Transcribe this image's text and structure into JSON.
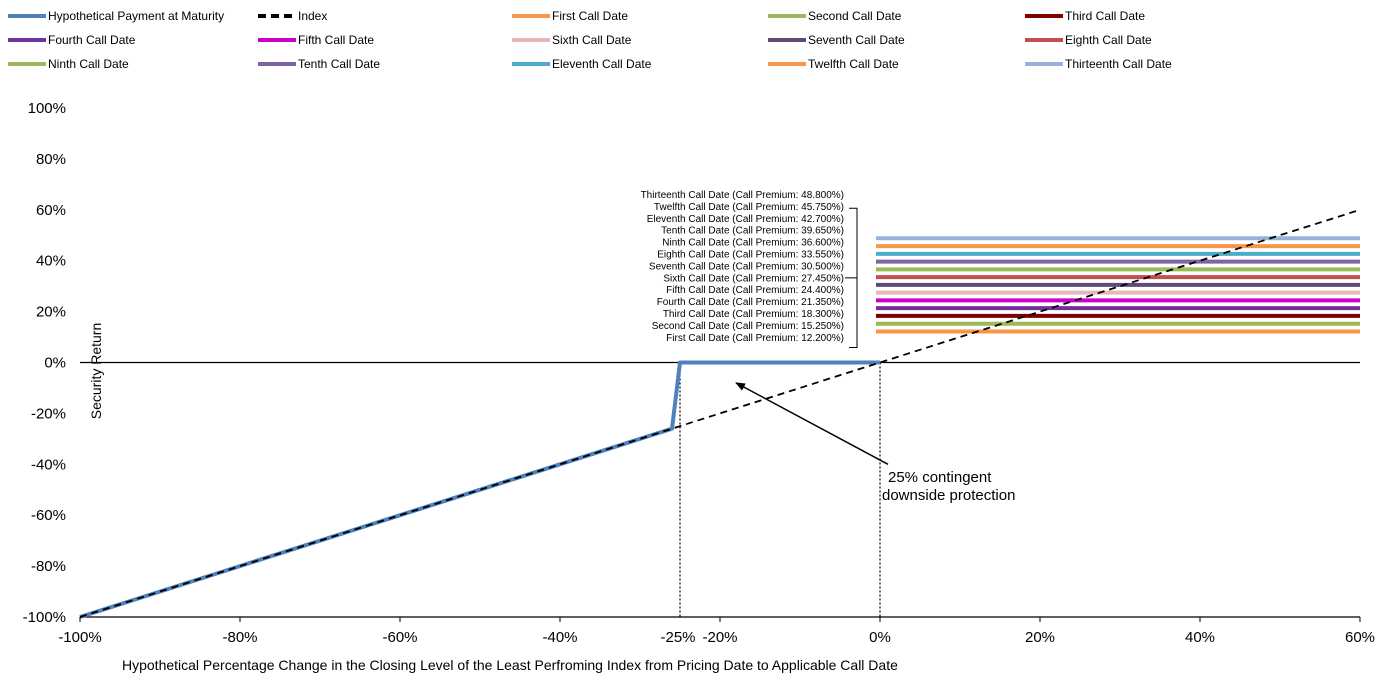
{
  "chart_data": {
    "type": "line",
    "title": "",
    "xlabel": "Hypothetical Percentage Change in the Closing Level of the Least Perfroming Index from Pricing Date to Applicable Call Date",
    "ylabel": "Security Return",
    "xlim": [
      -100,
      60
    ],
    "ylim": [
      -100,
      100
    ],
    "x_ticks": [
      -100,
      -80,
      -60,
      -40,
      -20,
      0,
      20,
      40,
      60
    ],
    "x_tick_labels": [
      "-100%",
      "-80%",
      "-60%",
      "-40%",
      "-20%",
      "0%",
      "20%",
      "40%",
      "60%"
    ],
    "extra_x_tick": {
      "x": -25,
      "label": "-25%"
    },
    "y_ticks": [
      100,
      80,
      60,
      40,
      20,
      0,
      -20,
      -40,
      -60,
      -80,
      -100
    ],
    "y_tick_labels": [
      "100%",
      "80%",
      "60%",
      "40%",
      "20%",
      "0%",
      "-20%",
      "-40%",
      "-60%",
      "-80%",
      "-100%"
    ],
    "grid": false,
    "legend_placement": "top",
    "series": [
      {
        "name": "Hypothetical Payment at Maturity",
        "color": "#4f81bd",
        "style": "solid",
        "x": [
          -100,
          -26,
          -25,
          0
        ],
        "y": [
          -100,
          -26,
          0,
          0
        ]
      },
      {
        "name": "Index",
        "color": "#000000",
        "style": "dashed",
        "x": [
          -100,
          60
        ],
        "y": [
          -100,
          60
        ]
      }
    ],
    "call_dates": [
      {
        "name": "First Call Date",
        "premium": 12.2,
        "color": "#f79646",
        "label": "First Call Date (Call Premium: 12.200%)"
      },
      {
        "name": "Second Call Date",
        "premium": 15.25,
        "color": "#9bbb59",
        "label": "Second Call Date (Call Premium: 15.250%)"
      },
      {
        "name": "Third Call Date",
        "premium": 18.3,
        "color": "#7f0000",
        "label": "Third Call Date (Call Premium: 18.300%)"
      },
      {
        "name": "Fourth Call Date",
        "premium": 21.35,
        "color": "#7030a0",
        "label": "Fourth Call Date (Call Premium: 21.350%)"
      },
      {
        "name": "Fifth Call Date",
        "premium": 24.4,
        "color": "#cc00cc",
        "label": "Fifth Call Date (Call Premium: 24.400%)"
      },
      {
        "name": "Sixth Call Date",
        "premium": 27.45,
        "color": "#e6b9b8",
        "label": "Sixth Call Date (Call Premium: 27.450%)"
      },
      {
        "name": "Seventh Call Date",
        "premium": 30.5,
        "color": "#604a7b",
        "label": "Seventh Call Date (Call Premium: 30.500%)"
      },
      {
        "name": "Eighth Call Date",
        "premium": 33.55,
        "color": "#c0504d",
        "label": "Eighth Call Date (Call Premium: 33.550%)"
      },
      {
        "name": "Ninth Call Date",
        "premium": 36.6,
        "color": "#9bbb59",
        "label": "Ninth Call Date (Call Premium: 36.600%)"
      },
      {
        "name": "Tenth Call Date",
        "premium": 39.65,
        "color": "#8064a2",
        "label": "Tenth Call Date (Call Premium: 39.650%)"
      },
      {
        "name": "Eleventh Call Date",
        "premium": 42.7,
        "color": "#4bacc6",
        "label": "Eleventh Call Date (Call Premium: 42.700%)"
      },
      {
        "name": "Twelfth Call Date",
        "premium": 45.75,
        "color": "#f79646",
        "label": "Twelfth Call Date (Call Premium: 45.750%)"
      },
      {
        "name": "Thirteenth Call Date",
        "premium": 48.8,
        "color": "#95b3d7",
        "label": "Thirteenth Call Date (Call Premium: 48.800%)"
      }
    ],
    "call_line_x_range": [
      0,
      60
    ],
    "vertical_reference_lines": [
      -25,
      0
    ],
    "annotation": {
      "lines": [
        "25% contingent",
        "downside protection"
      ],
      "arrow_from": {
        "x": 1,
        "y": -40
      },
      "arrow_to": {
        "x": -18,
        "y": -8
      }
    }
  }
}
